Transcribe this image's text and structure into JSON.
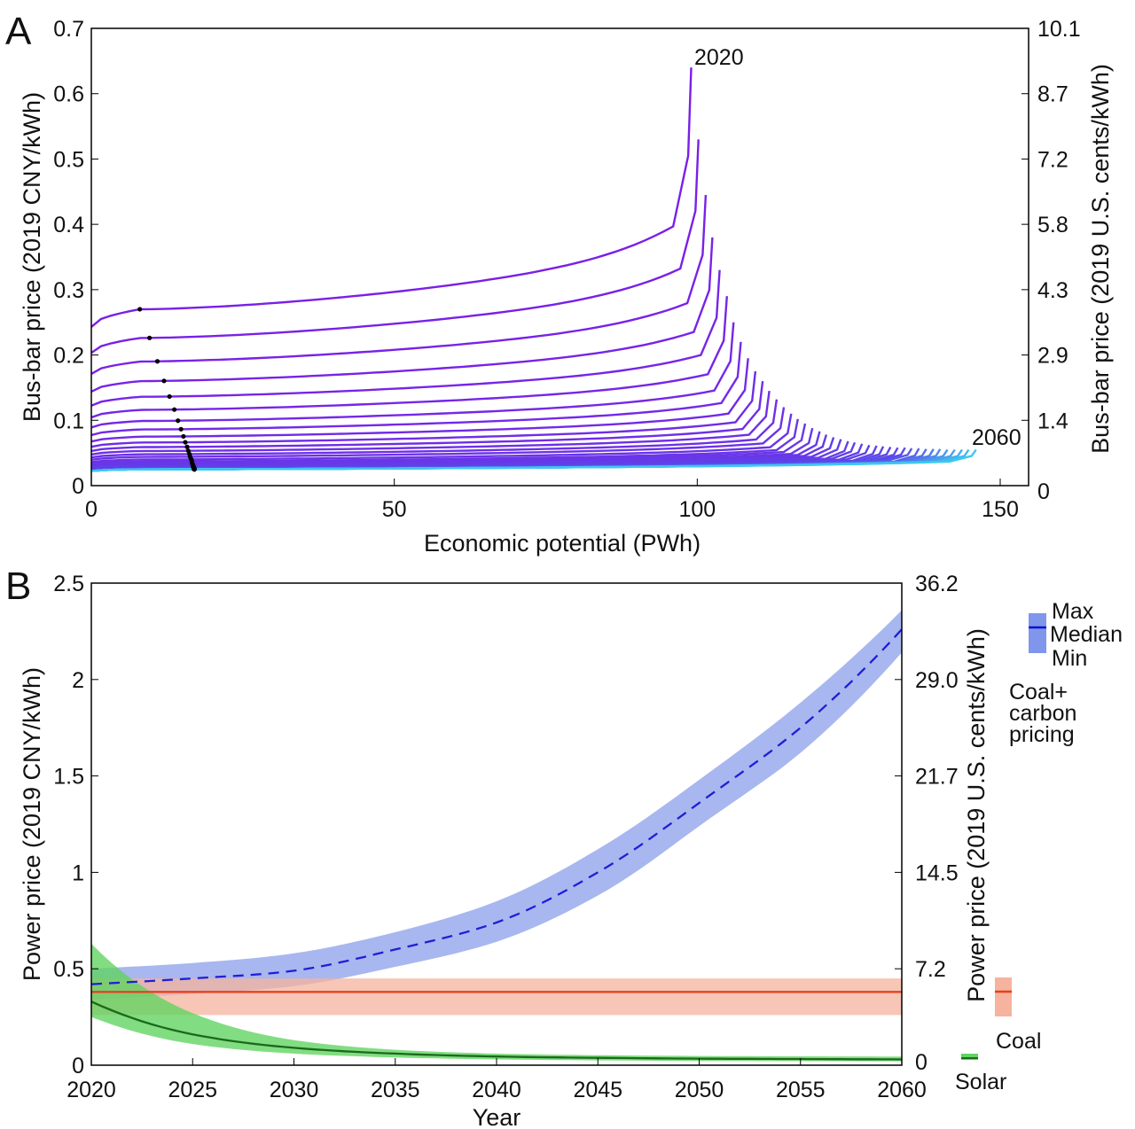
{
  "chart_data": [
    {
      "panel": "A",
      "type": "line",
      "xlabel": "Economic potential (PWh)",
      "ylabel": "Bus-bar price (2019 CNY/kWh)",
      "ylabel_right": "Bus-bar price (2019 U.S. cents/kWh)",
      "xlim": [
        0,
        155
      ],
      "ylim": [
        0,
        0.7
      ],
      "xticks": [
        "0",
        "50",
        "100",
        "150"
      ],
      "yticks": [
        "0",
        "0.1",
        "0.2",
        "0.3",
        "0.4",
        "0.5",
        "0.6",
        "0.7"
      ],
      "yticks_right": [
        "0",
        "1.4",
        "2.9",
        "4.3",
        "5.8",
        "7.2",
        "8.7",
        "10.1"
      ],
      "annotations": [
        "2020",
        "2060"
      ],
      "color_start": "#7a1fe8",
      "color_end": "#3ec8f0",
      "years": [
        2020,
        2021,
        2022,
        2023,
        2024,
        2025,
        2026,
        2027,
        2028,
        2029,
        2030,
        2031,
        2032,
        2033,
        2034,
        2035,
        2036,
        2037,
        2038,
        2039,
        2040,
        2041,
        2042,
        2043,
        2044,
        2045,
        2046,
        2047,
        2048,
        2049,
        2050,
        2051,
        2052,
        2053,
        2054,
        2055,
        2056,
        2057,
        2058,
        2059,
        2060
      ],
      "plateau_price": [
        0.27,
        0.226,
        0.19,
        0.16,
        0.136,
        0.116,
        0.099,
        0.086,
        0.075,
        0.066,
        0.059,
        0.053,
        0.048,
        0.044,
        0.04,
        0.037,
        0.035,
        0.033,
        0.032,
        0.031,
        0.03,
        0.029,
        0.028,
        0.028,
        0.027,
        0.027,
        0.026,
        0.026,
        0.026,
        0.026,
        0.026,
        0.026,
        0.025,
        0.025,
        0.025,
        0.025,
        0.025,
        0.025,
        0.025,
        0.025,
        0.025
      ],
      "max_potential": [
        99,
        100.2,
        101.4,
        102.5,
        103.7,
        104.9,
        106,
        107.2,
        108.4,
        109.6,
        110.8,
        111.9,
        113.1,
        114.3,
        115.5,
        116.6,
        117.8,
        119,
        120.2,
        121.3,
        122.5,
        123.7,
        124.9,
        126,
        127.2,
        128.4,
        129.6,
        130.7,
        131.9,
        133.1,
        134.3,
        135.4,
        136.6,
        137.8,
        139,
        140.1,
        141.3,
        142.5,
        143.7,
        144.8,
        146
      ],
      "peak_price": [
        0.64,
        0.53,
        0.445,
        0.38,
        0.33,
        0.29,
        0.25,
        0.22,
        0.195,
        0.175,
        0.16,
        0.145,
        0.132,
        0.12,
        0.11,
        0.102,
        0.095,
        0.088,
        0.083,
        0.078,
        0.074,
        0.071,
        0.068,
        0.066,
        0.064,
        0.062,
        0.061,
        0.06,
        0.059,
        0.058,
        0.058,
        0.057,
        0.057,
        0.056,
        0.056,
        0.056,
        0.055,
        0.055,
        0.055,
        0.055,
        0.055
      ],
      "dot_potential": [
        8,
        9.6,
        10.9,
        12,
        12.9,
        13.7,
        14.3,
        14.8,
        15.2,
        15.5,
        15.8,
        16,
        16.2,
        16.3,
        16.5,
        16.6,
        16.6,
        16.7,
        16.7,
        16.8,
        16.8,
        16.8,
        16.9,
        16.9,
        16.9,
        16.9,
        16.9,
        17,
        17,
        17,
        17,
        17,
        17,
        17,
        17,
        17,
        17,
        17,
        17,
        17,
        17
      ]
    },
    {
      "panel": "B",
      "type": "area",
      "xlabel": "Year",
      "ylabel": "Power price (2019 CNY/kWh)",
      "ylabel_right": "Power price (2019 U.S. cents/kWh)",
      "xlim": [
        2020,
        2060
      ],
      "ylim": [
        0,
        2.5
      ],
      "xticks": [
        "2020",
        "2025",
        "2030",
        "2035",
        "2040",
        "2045",
        "2050",
        "2055",
        "2060"
      ],
      "yticks": [
        "0",
        "0.5",
        "1",
        "1.5",
        "2",
        "2.5"
      ],
      "yticks_right": [
        "0",
        "7.2",
        "14.5",
        "21.7",
        "29.0",
        "36.2"
      ],
      "x": [
        2020,
        2025,
        2030,
        2035,
        2040,
        2045,
        2050,
        2055,
        2060
      ],
      "series": [
        {
          "name": "Coal+ carbon pricing",
          "color": "#1f1fd6",
          "band_color": "#8fa3ea",
          "dashed": true,
          "median": [
            0.42,
            0.45,
            0.49,
            0.6,
            0.74,
            1.0,
            1.36,
            1.75,
            2.26
          ],
          "max": [
            0.5,
            0.53,
            0.58,
            0.69,
            0.85,
            1.12,
            1.48,
            1.88,
            2.36
          ],
          "min": [
            0.34,
            0.37,
            0.41,
            0.51,
            0.64,
            0.88,
            1.24,
            1.62,
            2.14
          ]
        },
        {
          "name": "Coal",
          "color": "#e8401e",
          "band_color": "#f6b39d",
          "median": [
            0.38,
            0.38,
            0.38,
            0.38,
            0.38,
            0.38,
            0.38,
            0.38,
            0.38
          ],
          "max": [
            0.45,
            0.45,
            0.45,
            0.45,
            0.45,
            0.45,
            0.45,
            0.45,
            0.45
          ],
          "min": [
            0.26,
            0.26,
            0.26,
            0.26,
            0.26,
            0.26,
            0.26,
            0.26,
            0.26
          ]
        },
        {
          "name": "Solar",
          "color": "#1a6a1a",
          "band_color": "#5fd45f",
          "median": [
            0.33,
            0.16,
            0.09,
            0.06,
            0.045,
            0.038,
            0.034,
            0.032,
            0.03
          ],
          "max": [
            0.63,
            0.27,
            0.13,
            0.08,
            0.06,
            0.052,
            0.048,
            0.046,
            0.045
          ],
          "min": [
            0.25,
            0.11,
            0.06,
            0.04,
            0.03,
            0.025,
            0.022,
            0.021,
            0.02
          ]
        }
      ],
      "legend": {
        "max": "Max",
        "median": "Median",
        "min": "Min",
        "coal_carbon": [
          "Coal+",
          "carbon",
          "pricing"
        ],
        "coal": "Coal",
        "solar": "Solar"
      }
    }
  ],
  "panel_labels": [
    "A",
    "B"
  ]
}
